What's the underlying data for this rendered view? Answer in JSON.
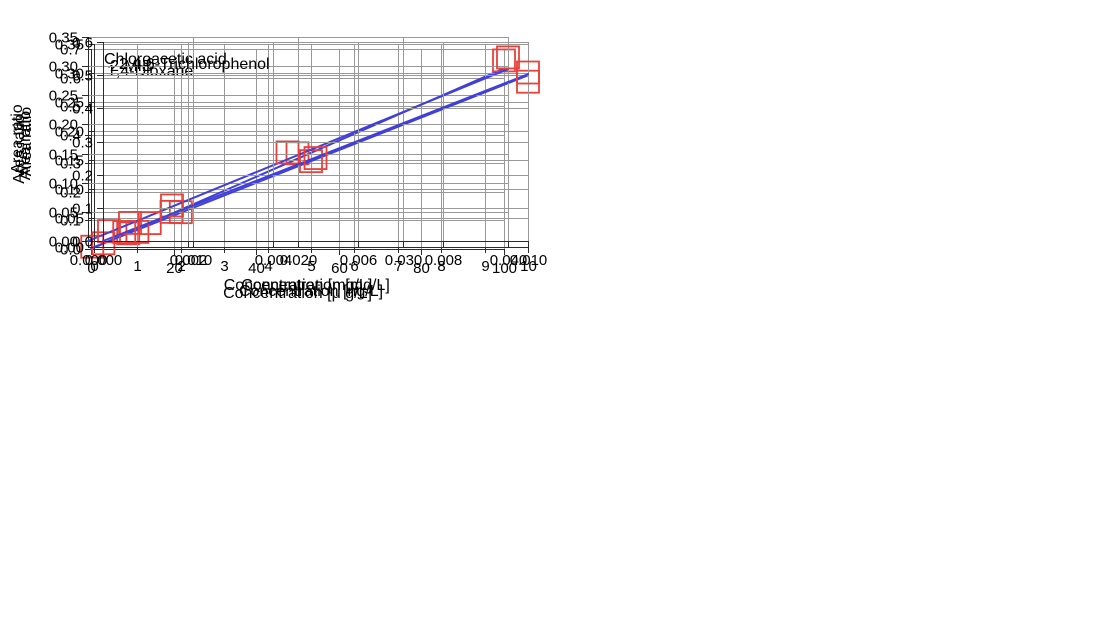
{
  "figure": {
    "background": "#ffffff",
    "description": "Four calibration curves, area ratio versus concentration"
  },
  "colors": {
    "fit_line": "#4040d8",
    "marker": "#e8403a",
    "grid": "#999999",
    "axis": "#2b2b2b",
    "text": "#000000",
    "background": "#ffffff"
  },
  "chart_data": [
    {
      "id": "dioxane",
      "type": "scatter",
      "title": "1,4-Dioxane",
      "xlabel": "Concentration [μ g/L]",
      "ylabel": "Area ratio",
      "xlim": [
        0,
        100
      ],
      "ylim": [
        0,
        0.7
      ],
      "x_ticks": [
        "0",
        "20",
        "40",
        "60",
        "80",
        "100"
      ],
      "y_ticks": [
        "0.0",
        "0.1",
        "0.2",
        "0.3",
        "0.4",
        "0.5",
        "0.6",
        "0.7"
      ],
      "grid": true,
      "legend": "none",
      "points": [
        {
          "x": 0.3,
          "y": 0.008
        },
        {
          "x": 3,
          "y": 0.02
        },
        {
          "x": 9,
          "y": 0.055
        },
        {
          "x": 19.5,
          "y": 0.13
        },
        {
          "x": 50,
          "y": 0.335
        },
        {
          "x": 100,
          "y": 0.66
        }
      ],
      "fit_line": {
        "x0": 0,
        "y0": 0,
        "x1": 100,
        "y1": 0.632
      }
    },
    {
      "id": "mib",
      "type": "scatter",
      "title": "2-MIB",
      "xlabel": "Concentration [ng/L]",
      "ylabel": "Area ratio",
      "xlim": [
        0,
        10
      ],
      "ylim": [
        0,
        0.35
      ],
      "x_ticks": [
        "0",
        "1",
        "2",
        "3",
        "4",
        "5",
        "6",
        "7",
        "8",
        "9",
        "10"
      ],
      "y_ticks": [
        "0.00",
        "0.05",
        "0.10",
        "0.15",
        "0.20",
        "0.25",
        "0.30",
        "0.35"
      ],
      "grid": true,
      "legend": "none",
      "points": [
        {
          "x": 1,
          "y": 0.026
        },
        {
          "x": 2,
          "y": 0.06
        },
        {
          "x": 5,
          "y": 0.148
        },
        {
          "x": 10,
          "y": 0.285
        }
      ],
      "fit_line": {
        "x0": 0,
        "y0": 0,
        "x1": 10,
        "y1": 0.296
      }
    },
    {
      "id": "chloroacetic-acid",
      "type": "scatter",
      "title": "Chloroacetic acid",
      "xlabel": "Concentration [mg/L]",
      "ylabel": "Area ratio",
      "xlim": [
        0,
        0.04
      ],
      "ylim": [
        0,
        0.35
      ],
      "x_ticks": [
        "0.000",
        "0.010",
        "0.020",
        "0.030",
        "0.040"
      ],
      "y_ticks": [
        "0.00",
        "0.05",
        "0.10",
        "0.15",
        "0.20",
        "0.25",
        "0.30",
        "0.35"
      ],
      "grid": true,
      "legend": "none",
      "points": [
        {
          "x": 0.002,
          "y": 0.017
        },
        {
          "x": 0.004,
          "y": 0.031
        },
        {
          "x": 0.008,
          "y": 0.061
        },
        {
          "x": 0.019,
          "y": 0.152
        },
        {
          "x": 0.04,
          "y": 0.315
        }
      ],
      "fit_line": {
        "x0": 0,
        "y0": 0,
        "x1": 0.04,
        "y1": 0.295
      }
    },
    {
      "id": "trichlorophenol",
      "type": "scatter",
      "title": "2,4,6-Trichlorophenol",
      "xlabel": "Concentration [mg/L]",
      "ylabel": "Area ratio",
      "xlim": [
        0,
        0.01
      ],
      "ylim": [
        0,
        0.6
      ],
      "x_ticks": [
        "0.000",
        "0.002",
        "0.004",
        "0.006",
        "0.008",
        "0.010"
      ],
      "y_ticks": [
        "0.0",
        "0.1",
        "0.2",
        "0.3",
        "0.4",
        "0.5",
        "0.6"
      ],
      "grid": true,
      "legend": "none",
      "points": [
        {
          "x": 0.0005,
          "y": 0.027
        },
        {
          "x": 0.0011,
          "y": 0.054
        },
        {
          "x": 0.005,
          "y": 0.25
        },
        {
          "x": 0.01,
          "y": 0.508
        }
      ],
      "fit_line": {
        "x0": 0,
        "y0": 0,
        "x1": 0.01,
        "y1": 0.503
      }
    }
  ]
}
